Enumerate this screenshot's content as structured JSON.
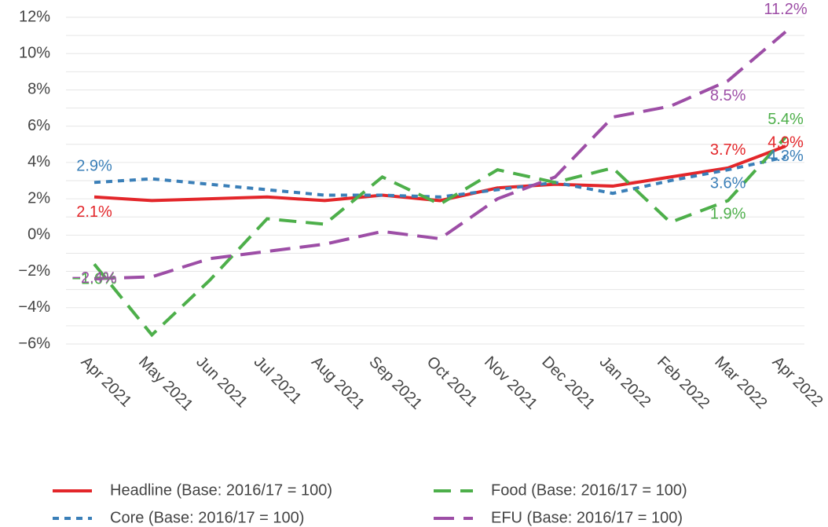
{
  "chart_data": {
    "type": "line",
    "categories": [
      "Apr 2021",
      "May 2021",
      "Jun 2021",
      "Jul 2021",
      "Aug 2021",
      "Sep 2021",
      "Oct 2021",
      "Nov 2021",
      "Dec 2021",
      "Jan 2022",
      "Feb 2022",
      "Mar 2022",
      "Apr 2022"
    ],
    "series": [
      {
        "name": "Headline (Base: 2016/17 = 100)",
        "color": "#e3262a",
        "dash": "solid",
        "values": [
          2.1,
          1.9,
          2.0,
          2.1,
          1.9,
          2.2,
          1.9,
          2.6,
          2.8,
          2.7,
          3.2,
          3.7,
          4.9
        ],
        "value_labels": [
          "2.1%",
          null,
          null,
          null,
          null,
          null,
          null,
          null,
          null,
          null,
          null,
          "3.7%",
          "4.9%"
        ]
      },
      {
        "name": "Core (Base: 2016/17 = 100)",
        "color": "#3a7fb8",
        "dash": "dotted",
        "values": [
          2.9,
          3.1,
          2.8,
          2.5,
          2.2,
          2.2,
          2.1,
          2.5,
          2.9,
          2.3,
          3.0,
          3.6,
          4.3
        ],
        "value_labels": [
          "2.9%",
          null,
          null,
          null,
          null,
          null,
          null,
          null,
          null,
          null,
          null,
          "3.6%",
          "4.3%"
        ]
      },
      {
        "name": "Food (Base: 2016/17 = 100)",
        "color": "#4daf4a",
        "dash": "longdash",
        "values": [
          -1.6,
          -5.5,
          -2.5,
          0.9,
          0.6,
          3.2,
          1.7,
          3.6,
          2.9,
          3.7,
          0.7,
          1.9,
          5.4
        ],
        "value_labels": [
          "−1.6%",
          null,
          null,
          null,
          null,
          null,
          null,
          null,
          null,
          null,
          null,
          "1.9%",
          "5.4%"
        ]
      },
      {
        "name": "EFU (Base: 2016/17 = 100)",
        "color": "#9d4ea6",
        "dash": "dashed",
        "values": [
          -2.4,
          -2.3,
          -1.3,
          -0.9,
          -0.5,
          0.2,
          -0.2,
          2.0,
          3.2,
          6.5,
          7.1,
          8.5,
          11.2
        ],
        "value_labels": [
          "−2.4%",
          null,
          null,
          null,
          null,
          null,
          null,
          null,
          null,
          null,
          null,
          "8.5%",
          "11.2%"
        ]
      }
    ],
    "ylim": [
      -6,
      12
    ],
    "yticks": [
      {
        "value": -6,
        "label": "−6%"
      },
      {
        "value": -4,
        "label": "−4%"
      },
      {
        "value": -2,
        "label": "−2%"
      },
      {
        "value": 0,
        "label": "0%"
      },
      {
        "value": 2,
        "label": "2%"
      },
      {
        "value": 4,
        "label": "4%"
      },
      {
        "value": 6,
        "label": "6%"
      },
      {
        "value": 8,
        "label": "8%"
      },
      {
        "value": 10,
        "label": "10%"
      },
      {
        "value": 12,
        "label": "12%"
      }
    ],
    "grid": true,
    "legend": "bottom"
  }
}
